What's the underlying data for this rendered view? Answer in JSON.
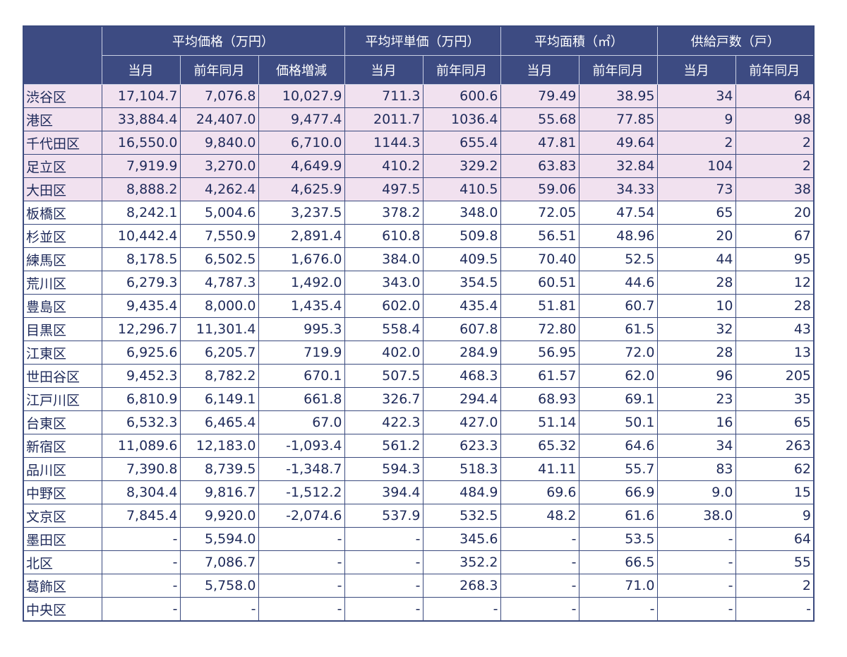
{
  "table": {
    "groups": [
      "平均価格（万円）",
      "平均坪単価（万円）",
      "平均面積（㎡）",
      "供給戸数（戸）"
    ],
    "subheaders": [
      "当月",
      "前年同月",
      "価格増減",
      "当月",
      "前年同月",
      "当月",
      "前年同月",
      "当月",
      "前年同月"
    ],
    "rows": [
      [
        "渋谷区",
        "17,104.7",
        "7,076.8",
        "10,027.9",
        "711.3",
        "600.6",
        "79.49",
        "38.95",
        "34",
        "64"
      ],
      [
        "港区",
        "33,884.4",
        "24,407.0",
        "9,477.4",
        "2011.7",
        "1036.4",
        "55.68",
        "77.85",
        "9",
        "98"
      ],
      [
        "千代田区",
        "16,550.0",
        "9,840.0",
        "6,710.0",
        "1144.3",
        "655.4",
        "47.81",
        "49.64",
        "2",
        "2"
      ],
      [
        "足立区",
        "7,919.9",
        "3,270.0",
        "4,649.9",
        "410.2",
        "329.2",
        "63.83",
        "32.84",
        "104",
        "2"
      ],
      [
        "大田区",
        "8,888.2",
        "4,262.4",
        "4,625.9",
        "497.5",
        "410.5",
        "59.06",
        "34.33",
        "73",
        "38"
      ],
      [
        "板橋区",
        "8,242.1",
        "5,004.6",
        "3,237.5",
        "378.2",
        "348.0",
        "72.05",
        "47.54",
        "65",
        "20"
      ],
      [
        "杉並区",
        "10,442.4",
        "7,550.9",
        "2,891.4",
        "610.8",
        "509.8",
        "56.51",
        "48.96",
        "20",
        "67"
      ],
      [
        "練馬区",
        "8,178.5",
        "6,502.5",
        "1,676.0",
        "384.0",
        "409.5",
        "70.40",
        "52.5",
        "44",
        "95"
      ],
      [
        "荒川区",
        "6,279.3",
        "4,787.3",
        "1,492.0",
        "343.0",
        "354.5",
        "60.51",
        "44.6",
        "28",
        "12"
      ],
      [
        "豊島区",
        "9,435.4",
        "8,000.0",
        "1,435.4",
        "602.0",
        "435.4",
        "51.81",
        "60.7",
        "10",
        "28"
      ],
      [
        "目黒区",
        "12,296.7",
        "11,301.4",
        "995.3",
        "558.4",
        "607.8",
        "72.80",
        "61.5",
        "32",
        "43"
      ],
      [
        "江東区",
        "6,925.6",
        "6,205.7",
        "719.9",
        "402.0",
        "284.9",
        "56.95",
        "72.0",
        "28",
        "13"
      ],
      [
        "世田谷区",
        "9,452.3",
        "8,782.2",
        "670.1",
        "507.5",
        "468.3",
        "61.57",
        "62.0",
        "96",
        "205"
      ],
      [
        "江戸川区",
        "6,810.9",
        "6,149.1",
        "661.8",
        "326.7",
        "294.4",
        "68.93",
        "69.1",
        "23",
        "35"
      ],
      [
        "台東区",
        "6,532.3",
        "6,465.4",
        "67.0",
        "422.3",
        "427.0",
        "51.14",
        "50.1",
        "16",
        "65"
      ],
      [
        "新宿区",
        "11,089.6",
        "12,183.0",
        "-1,093.4",
        "561.2",
        "623.3",
        "65.32",
        "64.6",
        "34",
        "263"
      ],
      [
        "品川区",
        "7,390.8",
        "8,739.5",
        "-1,348.7",
        "594.3",
        "518.3",
        "41.11",
        "55.7",
        "83",
        "62"
      ],
      [
        "中野区",
        "8,304.4",
        "9,816.7",
        "-1,512.2",
        "394.4",
        "484.9",
        "69.6",
        "66.9",
        "9.0",
        "15"
      ],
      [
        "文京区",
        "7,845.4",
        "9,920.0",
        "-2,074.6",
        "537.9",
        "532.5",
        "48.2",
        "61.6",
        "38.0",
        "9"
      ],
      [
        "墨田区",
        "-",
        "5,594.0",
        "-",
        "-",
        "345.6",
        "-",
        "53.5",
        "-",
        "64"
      ],
      [
        "北区",
        "-",
        "7,086.7",
        "-",
        "-",
        "352.2",
        "-",
        "66.5",
        "-",
        "55"
      ],
      [
        "葛飾区",
        "-",
        "5,758.0",
        "-",
        "-",
        "268.3",
        "-",
        "71.0",
        "-",
        "2"
      ],
      [
        "中央区",
        "-",
        "-",
        "-",
        "-",
        "-",
        "-",
        "-",
        "-",
        "-"
      ]
    ]
  }
}
